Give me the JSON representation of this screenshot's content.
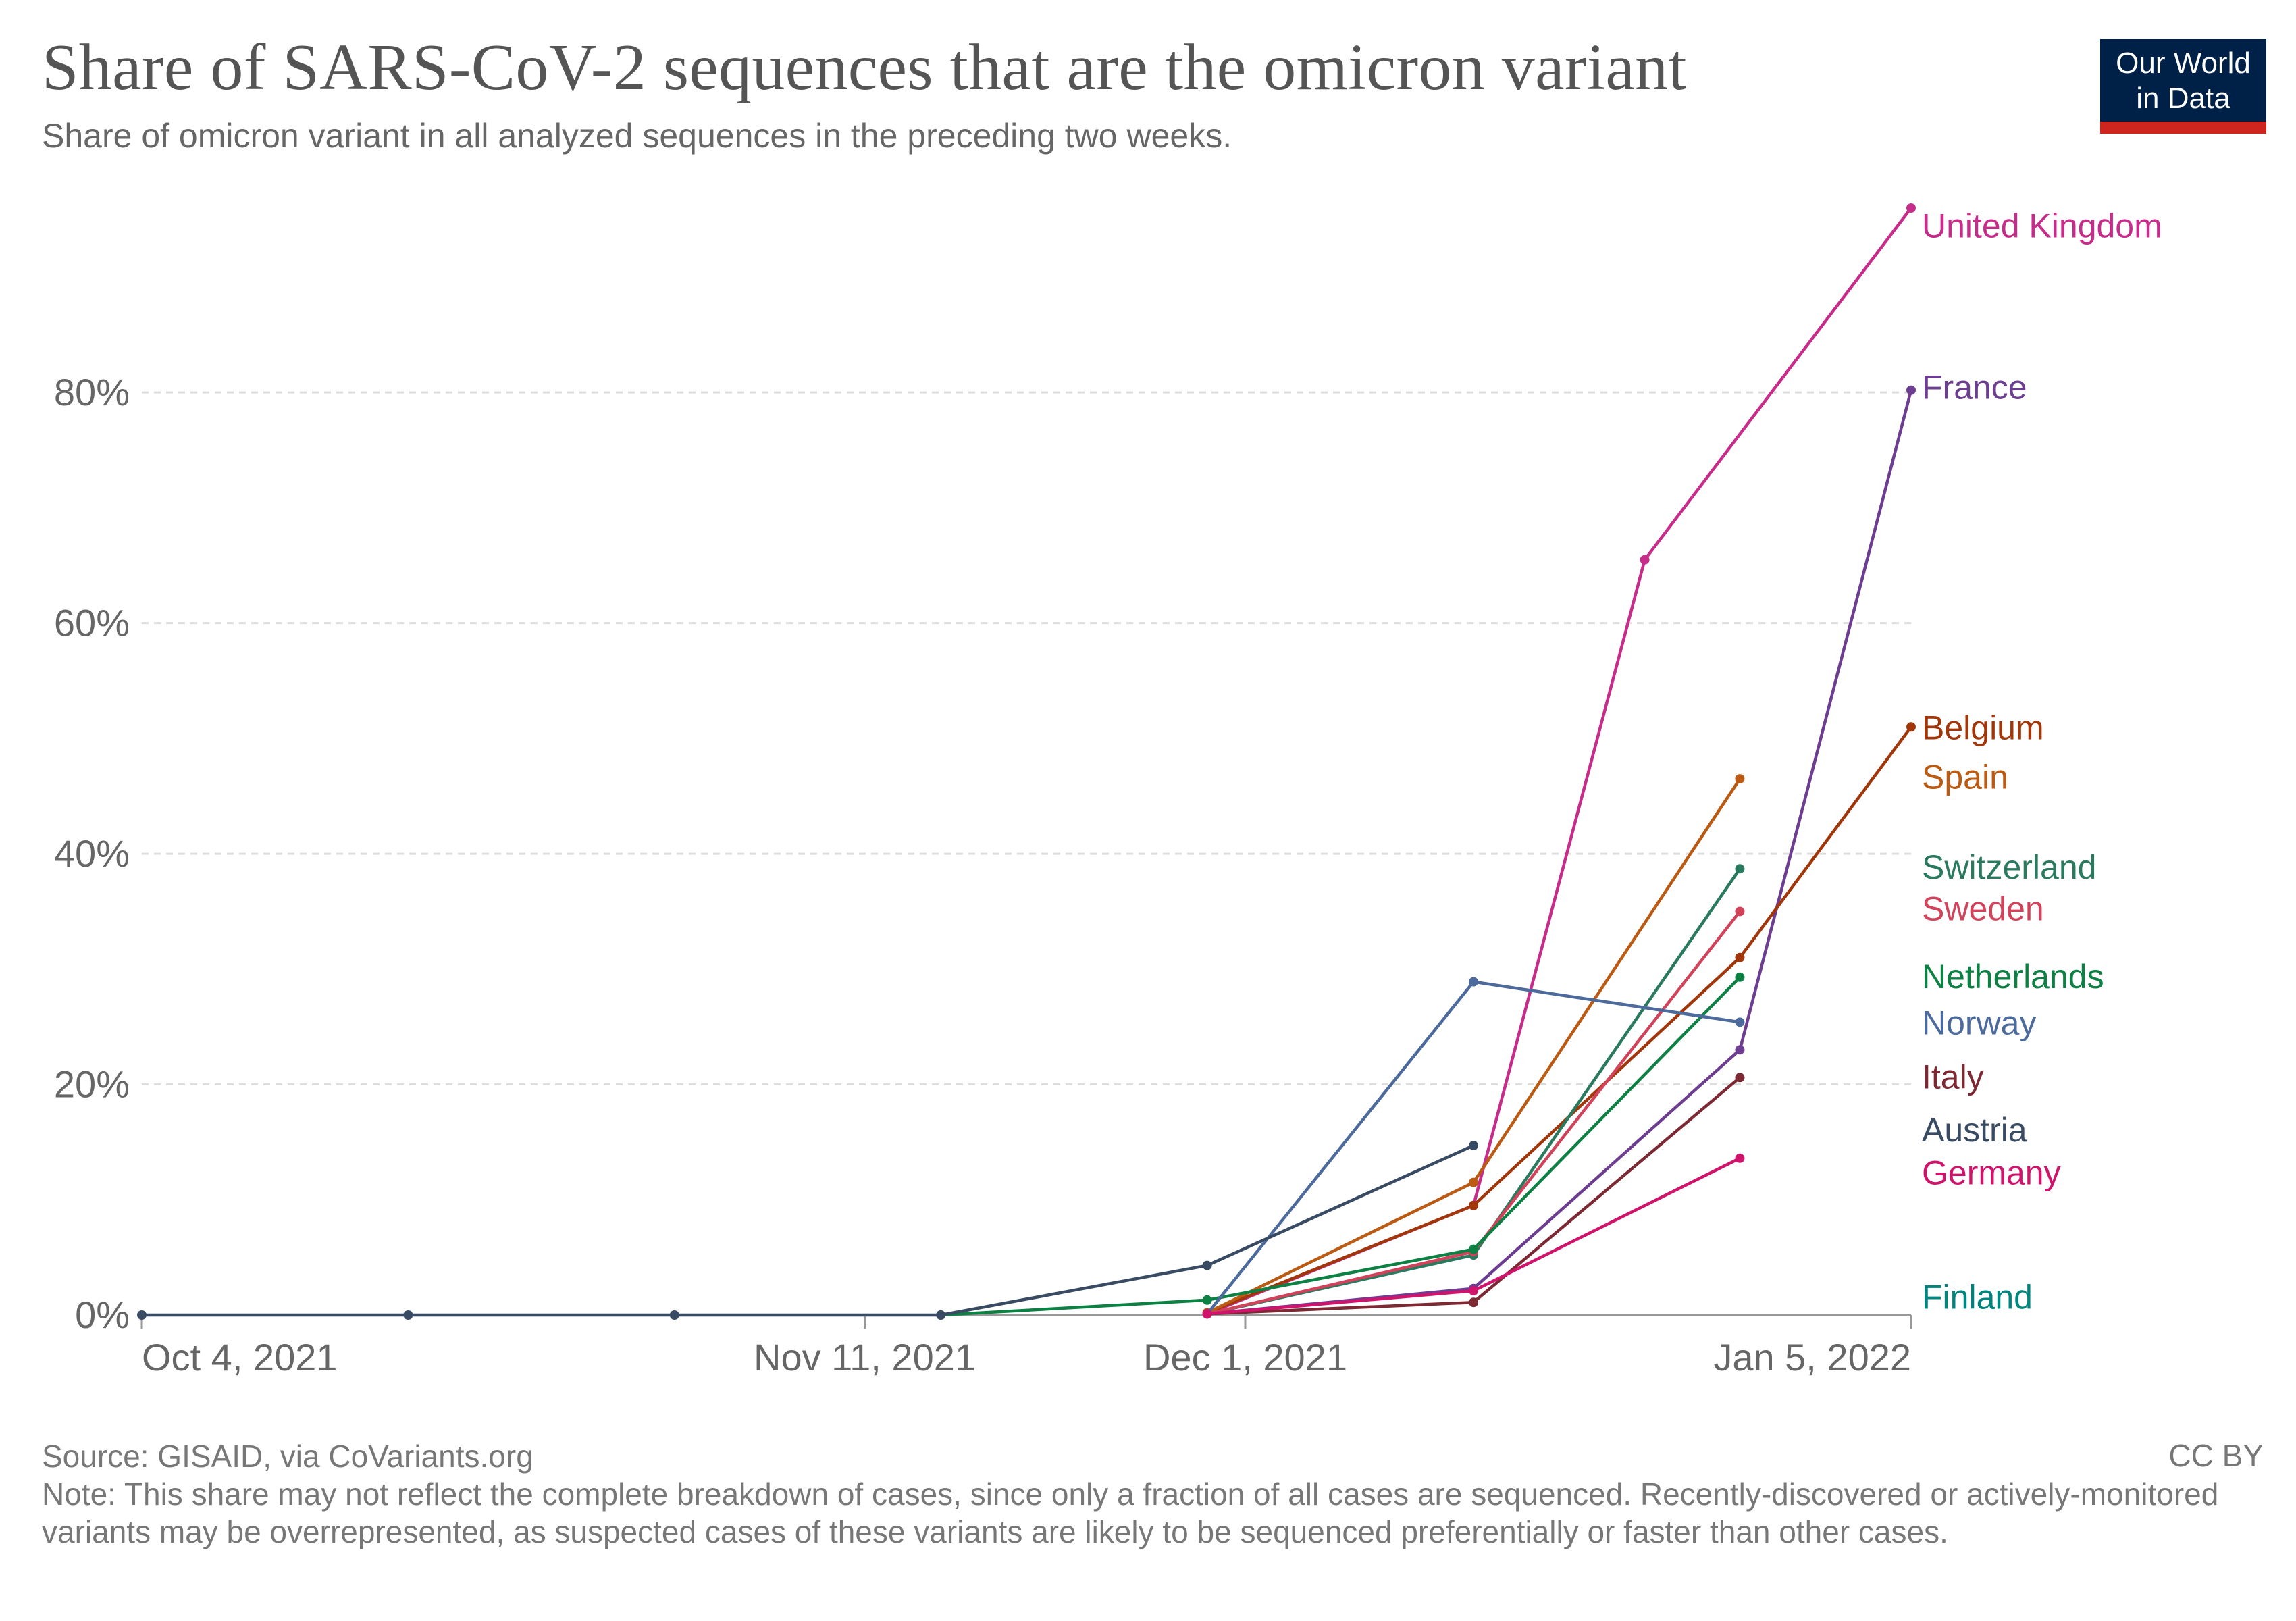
{
  "title": "Share of SARS-CoV-2 sequences that are the omicron variant",
  "subtitle": "Share of omicron variant in all analyzed sequences in the preceding two weeks.",
  "logo": {
    "line1": "Our World",
    "line2": "in Data"
  },
  "source": "Source: GISAID, via CoVariants.org",
  "license": "CC BY",
  "note": "Note: This share may not reflect the complete breakdown of cases, since only a fraction of all cases are sequenced. Recently-discovered or actively-monitored variants may be overrepresented, as suspected cases of these variants are likely to be sequenced preferentially or faster than other cases.",
  "chart_data": {
    "type": "line",
    "title": "Share of SARS-CoV-2 sequences that are the omicron variant",
    "xlabel": "",
    "ylabel": "",
    "x_unit": "days since Oct 4, 2021",
    "xlim": [
      0,
      93
    ],
    "ylim": [
      0,
      96
    ],
    "yticks": [
      {
        "value": 0,
        "label": "0%"
      },
      {
        "value": 20,
        "label": "20%"
      },
      {
        "value": 40,
        "label": "40%"
      },
      {
        "value": 60,
        "label": "60%"
      },
      {
        "value": 80,
        "label": "80%"
      }
    ],
    "xticks": [
      {
        "value": 0,
        "label": "Oct 4, 2021"
      },
      {
        "value": 38,
        "label": "Nov 11, 2021"
      },
      {
        "value": 58,
        "label": "Dec 1, 2021"
      },
      {
        "value": 93,
        "label": "Jan 5, 2022"
      }
    ],
    "grid": true,
    "series": [
      {
        "name": "United Kingdom",
        "color": "#c72c8b",
        "x": [
          56,
          70,
          79,
          93
        ],
        "y": [
          0.1,
          9.5,
          65.5,
          96
        ]
      },
      {
        "name": "France",
        "color": "#6c3d91",
        "x": [
          56,
          70,
          84,
          93
        ],
        "y": [
          0.1,
          2.3,
          23,
          80.2
        ]
      },
      {
        "name": "Belgium",
        "color": "#a2360b",
        "x": [
          56,
          70,
          84,
          93
        ],
        "y": [
          0.2,
          9.5,
          31,
          51
        ]
      },
      {
        "name": "Spain",
        "color": "#bb5a12",
        "x": [
          56,
          70,
          84
        ],
        "y": [
          0.2,
          11.5,
          46.5
        ]
      },
      {
        "name": "Switzerland",
        "color": "#2a7a5f",
        "x": [
          56,
          70,
          84
        ],
        "y": [
          0.1,
          5.2,
          38.7
        ]
      },
      {
        "name": "Sweden",
        "color": "#d1435b",
        "x": [
          56,
          70,
          84
        ],
        "y": [
          0.1,
          5.5,
          35
        ]
      },
      {
        "name": "Netherlands",
        "color": "#0d8043",
        "x": [
          42,
          56,
          70,
          84
        ],
        "y": [
          0,
          1.3,
          5.7,
          29.3
        ]
      },
      {
        "name": "Norway",
        "color": "#4c6a9c",
        "x": [
          56,
          70,
          84
        ],
        "y": [
          0.1,
          28.9,
          25.4
        ]
      },
      {
        "name": "Italy",
        "color": "#7d2933",
        "x": [
          56,
          70,
          84
        ],
        "y": [
          0.1,
          1.1,
          20.6
        ]
      },
      {
        "name": "Austria",
        "color": "#394b63",
        "x": [
          0,
          14,
          28,
          42,
          56,
          70
        ],
        "y": [
          0,
          0,
          0,
          0,
          4.3,
          14.7
        ]
      },
      {
        "name": "Germany",
        "color": "#d0136b",
        "x": [
          56,
          70,
          84
        ],
        "y": [
          0.1,
          2.1,
          13.6
        ]
      },
      {
        "name": "Finland",
        "color": "#00847e",
        "x": [],
        "y": []
      }
    ],
    "end_labels": [
      {
        "name": "United Kingdom",
        "color": "#c72c8b",
        "y": 94.5
      },
      {
        "name": "France",
        "color": "#6c3d91",
        "y": 80.5
      },
      {
        "name": "Belgium",
        "color": "#a2360b",
        "y": 51
      },
      {
        "name": "Spain",
        "color": "#bb5a12",
        "y": 46.7
      },
      {
        "name": "Switzerland",
        "color": "#2a7a5f",
        "y": 38.9
      },
      {
        "name": "Sweden",
        "color": "#d1435b",
        "y": 35.3
      },
      {
        "name": "Netherlands",
        "color": "#0d8043",
        "y": 29.4
      },
      {
        "name": "Norway",
        "color": "#4c6a9c",
        "y": 25.4
      },
      {
        "name": "Italy",
        "color": "#7d2933",
        "y": 20.7
      },
      {
        "name": "Austria",
        "color": "#394b63",
        "y": 16.1
      },
      {
        "name": "Germany",
        "color": "#d0136b",
        "y": 12.4
      },
      {
        "name": "Finland",
        "color": "#00847e",
        "y": 1.6
      }
    ]
  }
}
